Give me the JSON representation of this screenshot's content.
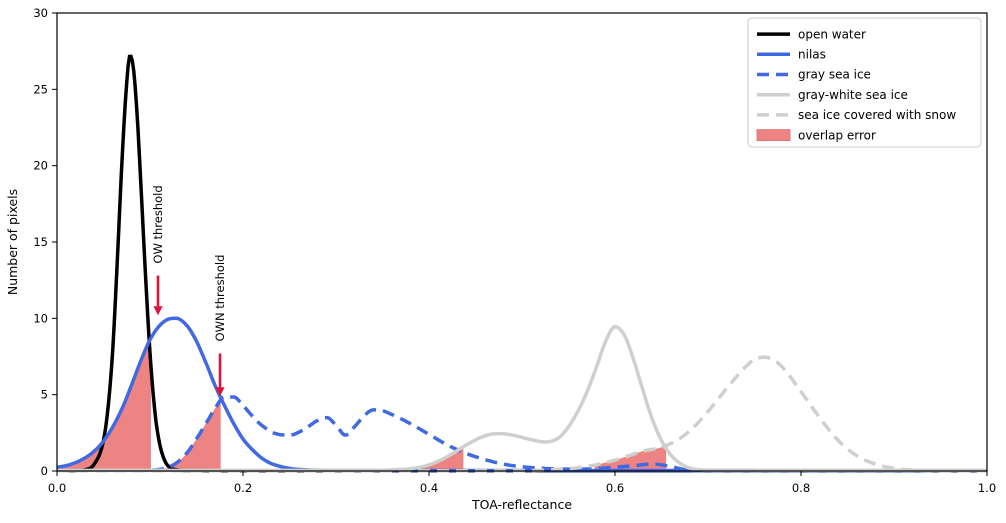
{
  "chart_data": {
    "type": "line",
    "title": "",
    "xlabel": "TOA-reflectance",
    "ylabel": "Number of pixels",
    "xlim": [
      0.0,
      1.0
    ],
    "ylim": [
      0,
      30
    ],
    "grid": false,
    "xticks": [
      0.0,
      0.2,
      0.4,
      0.6,
      0.8,
      1.0
    ],
    "xtick_labels": [
      "0.0",
      "0.2",
      "0.4",
      "0.6",
      "0.8",
      "1.0"
    ],
    "yticks": [
      0,
      5,
      10,
      15,
      20,
      25,
      30
    ],
    "ytick_labels": [
      "0",
      "5",
      "10",
      "15",
      "20",
      "25",
      "30"
    ],
    "legend_position": "upper right",
    "colors": {
      "open_water": "#000000",
      "nilas": "#4169e1",
      "gray_sea_ice": "#4169e1",
      "gray_white_sea_ice": "#cfcfcf",
      "snow_covered": "#cfcfcf",
      "overlap_fill": "#ee8383",
      "arrow": "#dc143c",
      "legend_border": "#cccccc"
    },
    "series": [
      {
        "name": "open water",
        "slug": "open-water",
        "color": "#000000",
        "dashed": false,
        "width": 3.5,
        "points": [
          [
            0.0,
            0.02
          ],
          [
            0.02,
            0.03
          ],
          [
            0.03,
            0.08
          ],
          [
            0.04,
            0.45
          ],
          [
            0.05,
            2.0
          ],
          [
            0.055,
            4.2
          ],
          [
            0.06,
            8.0
          ],
          [
            0.065,
            14.0
          ],
          [
            0.07,
            20.5
          ],
          [
            0.075,
            25.5
          ],
          [
            0.0785,
            27.2
          ],
          [
            0.082,
            26.5
          ],
          [
            0.086,
            23.5
          ],
          [
            0.09,
            19.0
          ],
          [
            0.095,
            13.0
          ],
          [
            0.1,
            7.7
          ],
          [
            0.105,
            4.0
          ],
          [
            0.11,
            1.9
          ],
          [
            0.115,
            0.8
          ],
          [
            0.12,
            0.3
          ],
          [
            0.13,
            0.07
          ],
          [
            0.14,
            0.03
          ],
          [
            0.2,
            0.02
          ],
          [
            1.0,
            0.02
          ]
        ]
      },
      {
        "name": "nilas",
        "slug": "nilas",
        "color": "#4169e1",
        "dashed": false,
        "width": 3.5,
        "points": [
          [
            0.0,
            0.25
          ],
          [
            0.01,
            0.35
          ],
          [
            0.02,
            0.55
          ],
          [
            0.03,
            0.85
          ],
          [
            0.04,
            1.3
          ],
          [
            0.05,
            1.95
          ],
          [
            0.06,
            2.9
          ],
          [
            0.07,
            4.1
          ],
          [
            0.08,
            5.6
          ],
          [
            0.09,
            7.2
          ],
          [
            0.1,
            8.6
          ],
          [
            0.11,
            9.5
          ],
          [
            0.12,
            9.95
          ],
          [
            0.128,
            10.0
          ],
          [
            0.14,
            9.5
          ],
          [
            0.15,
            8.5
          ],
          [
            0.16,
            7.1
          ],
          [
            0.17,
            5.6
          ],
          [
            0.18,
            4.3
          ],
          [
            0.19,
            3.1
          ],
          [
            0.2,
            2.1
          ],
          [
            0.21,
            1.4
          ],
          [
            0.22,
            0.85
          ],
          [
            0.23,
            0.5
          ],
          [
            0.24,
            0.3
          ],
          [
            0.25,
            0.17
          ],
          [
            0.26,
            0.1
          ],
          [
            0.28,
            0.05
          ],
          [
            0.3,
            0.03
          ],
          [
            1.0,
            0.03
          ]
        ]
      },
      {
        "name": "gray sea ice",
        "slug": "gray-sea-ice",
        "color": "#4169e1",
        "dashed": true,
        "width": 3.5,
        "points": [
          [
            0.0,
            0.02
          ],
          [
            0.09,
            0.02
          ],
          [
            0.1,
            0.05
          ],
          [
            0.11,
            0.1
          ],
          [
            0.12,
            0.25
          ],
          [
            0.13,
            0.6
          ],
          [
            0.14,
            1.2
          ],
          [
            0.15,
            2.1
          ],
          [
            0.16,
            3.1
          ],
          [
            0.17,
            4.1
          ],
          [
            0.18,
            4.85
          ],
          [
            0.19,
            4.85
          ],
          [
            0.2,
            4.3
          ],
          [
            0.21,
            3.6
          ],
          [
            0.22,
            3.0
          ],
          [
            0.235,
            2.45
          ],
          [
            0.25,
            2.35
          ],
          [
            0.265,
            2.7
          ],
          [
            0.28,
            3.3
          ],
          [
            0.29,
            3.5
          ],
          [
            0.3,
            3.0
          ],
          [
            0.31,
            2.35
          ],
          [
            0.32,
            2.9
          ],
          [
            0.33,
            3.6
          ],
          [
            0.34,
            4.0
          ],
          [
            0.35,
            3.95
          ],
          [
            0.36,
            3.7
          ],
          [
            0.38,
            3.1
          ],
          [
            0.4,
            2.4
          ],
          [
            0.42,
            1.7
          ],
          [
            0.44,
            1.15
          ],
          [
            0.46,
            0.75
          ],
          [
            0.48,
            0.45
          ],
          [
            0.5,
            0.28
          ],
          [
            0.53,
            0.15
          ],
          [
            0.56,
            0.12
          ],
          [
            0.59,
            0.2
          ],
          [
            0.62,
            0.35
          ],
          [
            0.64,
            0.45
          ],
          [
            0.66,
            0.3
          ],
          [
            0.67,
            0.15
          ],
          [
            0.68,
            0.05
          ],
          [
            0.7,
            0.02
          ],
          [
            1.0,
            0.02
          ]
        ]
      },
      {
        "name": "gray-white sea ice",
        "slug": "gray-white-sea-ice",
        "color": "#cfcfcf",
        "dashed": false,
        "width": 3.5,
        "points": [
          [
            0.0,
            0.04
          ],
          [
            0.34,
            0.04
          ],
          [
            0.36,
            0.08
          ],
          [
            0.38,
            0.15
          ],
          [
            0.4,
            0.4
          ],
          [
            0.42,
            0.95
          ],
          [
            0.44,
            1.7
          ],
          [
            0.46,
            2.3
          ],
          [
            0.475,
            2.45
          ],
          [
            0.49,
            2.35
          ],
          [
            0.51,
            2.05
          ],
          [
            0.525,
            1.9
          ],
          [
            0.54,
            2.2
          ],
          [
            0.55,
            2.9
          ],
          [
            0.56,
            3.9
          ],
          [
            0.57,
            5.2
          ],
          [
            0.58,
            6.8
          ],
          [
            0.59,
            8.5
          ],
          [
            0.6,
            9.45
          ],
          [
            0.61,
            8.9
          ],
          [
            0.62,
            7.3
          ],
          [
            0.63,
            5.3
          ],
          [
            0.64,
            3.4
          ],
          [
            0.65,
            2.0
          ],
          [
            0.66,
            1.05
          ],
          [
            0.67,
            0.5
          ],
          [
            0.68,
            0.2
          ],
          [
            0.7,
            0.06
          ],
          [
            1.0,
            0.05
          ]
        ]
      },
      {
        "name": "sea ice covered with snow",
        "slug": "sea-ice-covered-with-snow",
        "color": "#cfcfcf",
        "dashed": true,
        "width": 3.5,
        "points": [
          [
            0.0,
            0.02
          ],
          [
            0.5,
            0.02
          ],
          [
            0.53,
            0.08
          ],
          [
            0.55,
            0.15
          ],
          [
            0.57,
            0.3
          ],
          [
            0.59,
            0.55
          ],
          [
            0.61,
            0.9
          ],
          [
            0.63,
            1.3
          ],
          [
            0.65,
            1.55
          ],
          [
            0.66,
            1.8
          ],
          [
            0.68,
            2.6
          ],
          [
            0.7,
            3.9
          ],
          [
            0.72,
            5.4
          ],
          [
            0.74,
            6.8
          ],
          [
            0.75,
            7.3
          ],
          [
            0.76,
            7.45
          ],
          [
            0.77,
            7.3
          ],
          [
            0.78,
            6.8
          ],
          [
            0.8,
            5.2
          ],
          [
            0.82,
            3.5
          ],
          [
            0.84,
            2.0
          ],
          [
            0.86,
            1.0
          ],
          [
            0.88,
            0.45
          ],
          [
            0.9,
            0.18
          ],
          [
            0.92,
            0.07
          ],
          [
            0.94,
            0.03
          ],
          [
            1.0,
            0.02
          ]
        ]
      }
    ],
    "overlap_fills": [
      {
        "curve": "nilas",
        "from": 0.0,
        "to": 0.101
      },
      {
        "curve": "gray sea ice",
        "from": 0.112,
        "to": 0.176
      },
      {
        "curve": "gray-white sea ice",
        "from": 0.385,
        "to": 0.437
      },
      {
        "curve": "sea ice covered with snow",
        "from": 0.578,
        "to": 0.655
      }
    ],
    "annotations": [
      {
        "label": "OW threshold",
        "slug": "ow-threshold",
        "x": 0.1086,
        "arrow_from_y": 12.8,
        "arrow_to_y": 10.2
      },
      {
        "label": "OWN threshold",
        "slug": "own-threshold",
        "x": 0.1753,
        "arrow_from_y": 7.7,
        "arrow_to_y": 4.9
      }
    ],
    "legend_entries": [
      {
        "label": "open water",
        "slug": "open-water",
        "swatch": "line",
        "color": "#000000",
        "dashed": false
      },
      {
        "label": "nilas",
        "slug": "nilas",
        "swatch": "line",
        "color": "#4169e1",
        "dashed": false
      },
      {
        "label": "gray sea ice",
        "slug": "gray-sea-ice",
        "swatch": "line",
        "color": "#4169e1",
        "dashed": true
      },
      {
        "label": "gray-white sea ice",
        "slug": "gray-white-sea-ice",
        "swatch": "line",
        "color": "#cfcfcf",
        "dashed": false
      },
      {
        "label": "sea ice covered with snow",
        "slug": "sea-ice-covered-with-snow",
        "swatch": "line",
        "color": "#cfcfcf",
        "dashed": true
      },
      {
        "label": "overlap error",
        "slug": "overlap-error",
        "swatch": "patch",
        "color": "#ee8383",
        "dashed": false
      }
    ]
  }
}
